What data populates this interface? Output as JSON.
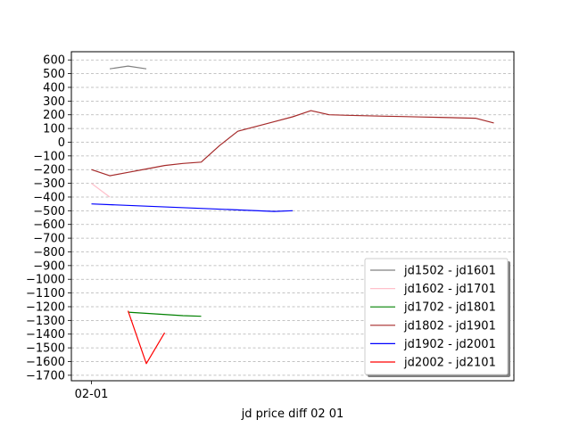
{
  "chart_data": {
    "type": "line",
    "title": "",
    "xlabel": "jd price diff 02 01",
    "ylabel": "",
    "x_tick_labels": [
      "02-01"
    ],
    "xlim": [
      -1.1,
      23.1
    ],
    "ylim": [
      -1740,
      660
    ],
    "y_ticks": [
      600,
      500,
      400,
      300,
      200,
      100,
      0,
      -100,
      -200,
      -300,
      -400,
      -500,
      -600,
      -700,
      -800,
      -900,
      -1000,
      -1100,
      -1200,
      -1300,
      -1400,
      -1500,
      -1600,
      -1700
    ],
    "grid": "horizontal-dashed",
    "legend_position": "bottom-right",
    "series": [
      {
        "name": "jd1502 - jd1601",
        "color": "#808080",
        "x": [
          1,
          2,
          3
        ],
        "y": [
          535,
          555,
          535
        ]
      },
      {
        "name": "jd1602 - jd1701",
        "color": "#ffc0cb",
        "x": [
          0,
          1
        ],
        "y": [
          -300,
          -400
        ]
      },
      {
        "name": "jd1702 - jd1801",
        "color": "#008000",
        "x": [
          2,
          5,
          6
        ],
        "y": [
          -1240,
          -1265,
          -1270
        ]
      },
      {
        "name": "jd1802 - jd1901",
        "color": "#a52a2a",
        "x": [
          0,
          1,
          2,
          3,
          4,
          5,
          6,
          7,
          8,
          9,
          10,
          11,
          12,
          13,
          14,
          15,
          16,
          17,
          18,
          19,
          20,
          21,
          22
        ],
        "y": [
          -200,
          -245,
          -220,
          -195,
          -170,
          -155,
          -145,
          -25,
          80,
          115,
          150,
          185,
          230,
          200,
          196,
          193,
          190,
          187,
          184,
          181,
          178,
          175,
          140
        ]
      },
      {
        "name": "jd1902 - jd2001",
        "color": "#0000ff",
        "x": [
          0,
          10,
          11
        ],
        "y": [
          -450,
          -505,
          -500
        ]
      },
      {
        "name": "jd2002 - jd2101",
        "color": "#ff0000",
        "x": [
          2,
          3,
          4
        ],
        "y": [
          -1230,
          -1615,
          -1390
        ]
      }
    ]
  }
}
